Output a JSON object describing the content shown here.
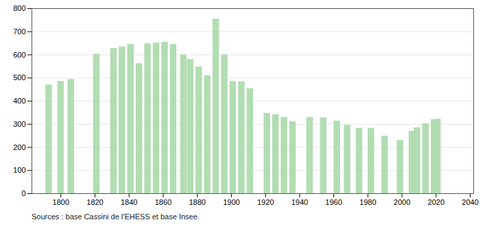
{
  "chart_data": {
    "type": "bar",
    "x": [
      1793,
      1800,
      1806,
      1821,
      1831,
      1836,
      1841,
      1846,
      1851,
      1856,
      1861,
      1866,
      1872,
      1876,
      1881,
      1886,
      1891,
      1896,
      1901,
      1906,
      1911,
      1921,
      1926,
      1931,
      1936,
      1946,
      1954,
      1962,
      1968,
      1975,
      1982,
      1990,
      1999,
      2006,
      2009,
      2014,
      2019,
      2021
    ],
    "values": [
      470,
      485,
      494,
      603,
      628,
      635,
      645,
      562,
      648,
      651,
      655,
      645,
      600,
      580,
      548,
      510,
      755,
      600,
      485,
      483,
      454,
      347,
      342,
      330,
      311,
      330,
      328,
      314,
      296,
      283,
      282,
      249,
      231,
      270,
      285,
      302,
      320,
      322
    ],
    "color": "#b2ddb2",
    "xlim": [
      1783,
      2042
    ],
    "xticks": [
      1800,
      1820,
      1840,
      1860,
      1880,
      1900,
      1920,
      1940,
      1960,
      1980,
      2000,
      2020,
      2040
    ],
    "ylim": [
      0,
      800
    ],
    "yticks": [
      0,
      100,
      200,
      300,
      400,
      500,
      600,
      700,
      800
    ],
    "grid": true,
    "caption": "Sources : base Cassini de l'EHESS et base Insee."
  }
}
